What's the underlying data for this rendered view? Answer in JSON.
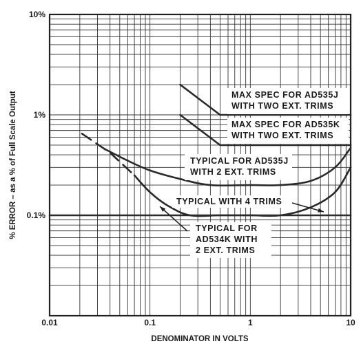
{
  "chart_data": {
    "type": "line",
    "title": "",
    "xlabel": "DENOMINATOR IN VOLTS",
    "ylabel": "% ERROR – as a % of Full Scale Output",
    "x_scale": "log",
    "y_scale": "log",
    "xlim": [
      0.01,
      10
    ],
    "ylim": [
      0.01,
      10
    ],
    "x_ticks": [
      {
        "value": 0.01,
        "label": "0.01"
      },
      {
        "value": 0.1,
        "label": "0.1"
      },
      {
        "value": 1,
        "label": "1"
      },
      {
        "value": 10,
        "label": "10"
      }
    ],
    "y_ticks": [
      {
        "value": 10,
        "label": "10%"
      },
      {
        "value": 1,
        "label": "1%"
      },
      {
        "value": 0.1,
        "label": "0.1%"
      }
    ],
    "grid": true,
    "series": [
      {
        "lines": [
          "MAX SPEC FOR AD535J",
          "WITH TWO EXT. TRIMS"
        ],
        "style": "solid",
        "x": [
          0.2,
          0.5,
          10
        ],
        "y": [
          2.0,
          1.0,
          1.0
        ]
      },
      {
        "lines": [
          "MAX SPEC FOR AD535K",
          "WITH TWO EXT. TRIMS"
        ],
        "style": "solid",
        "x": [
          0.2,
          0.5,
          10
        ],
        "y": [
          1.0,
          0.5,
          0.5
        ]
      },
      {
        "lines": [
          "TYPICAL FOR AD535J",
          "WITH 2 EXT. TRIMS"
        ],
        "style": "solid",
        "x": [
          0.035,
          0.06,
          0.1,
          0.2,
          0.4,
          1.0,
          2.0,
          4.0,
          7.0,
          10.0
        ],
        "y": [
          0.46,
          0.35,
          0.28,
          0.23,
          0.2,
          0.2,
          0.2,
          0.22,
          0.3,
          0.47
        ]
      },
      {
        "lines": [
          "TYPICAL WITH 4 TRIMS"
        ],
        "style": "solid",
        "x": [
          0.01,
          10
        ],
        "y": [
          0.1,
          0.1
        ]
      },
      {
        "lines": [
          "TYPICAL FOR",
          "AD534K WITH",
          "2 EXT. TRIMS"
        ],
        "style": "dashed-then-solid",
        "x": [
          0.021,
          0.04,
          0.07,
          0.1,
          0.15,
          0.25,
          0.5,
          1.0,
          2.0,
          4.0,
          7.0,
          10.0
        ],
        "y": [
          0.65,
          0.42,
          0.25,
          0.17,
          0.125,
          0.1,
          0.1,
          0.1,
          0.1,
          0.12,
          0.17,
          0.3
        ]
      }
    ]
  }
}
